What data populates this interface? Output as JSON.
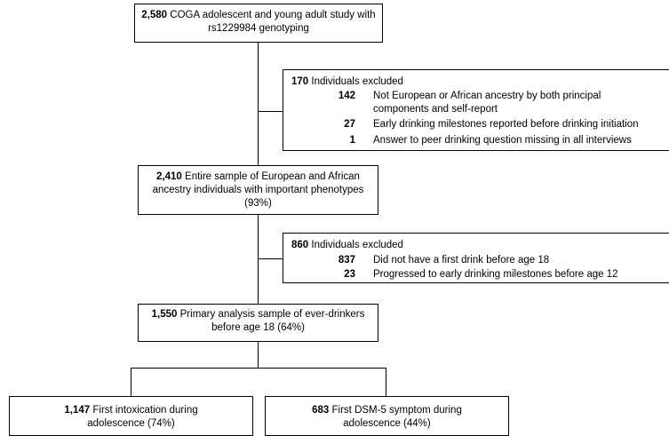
{
  "boxes": {
    "top": {
      "number": "2,580",
      "text": "COGA adolescent and young adult study with rs1229984 genotyping"
    },
    "exclusion1": {
      "number": "170",
      "title": "Individuals excluded",
      "items": [
        {
          "number": "142",
          "text": "Not European or African ancestry by both principal components and self-report"
        },
        {
          "number": "27",
          "text": "Early drinking milestones reported before drinking initiation"
        },
        {
          "number": "1",
          "text": "Answer to peer drinking question missing in all interviews"
        }
      ]
    },
    "sample": {
      "number": "2,410",
      "text": "Entire sample of European and African ancestry individuals with important phenotypes (93%)"
    },
    "exclusion2": {
      "number": "860",
      "title": "Individuals excluded",
      "items": [
        {
          "number": "837",
          "text": "Did not have a first drink before age 18"
        },
        {
          "number": "23",
          "text": "Progressed to early drinking milestones before age 12"
        }
      ]
    },
    "primary": {
      "number": "1,550",
      "text": "Primary analysis sample of ever-drinkers before age 18 (64%)"
    },
    "intoxication": {
      "number": "1,147",
      "text": "First intoxication during adolescence (74%)"
    },
    "dsm": {
      "number": "683",
      "text": "First DSM-5 symptom during adolescence (44%)"
    }
  }
}
